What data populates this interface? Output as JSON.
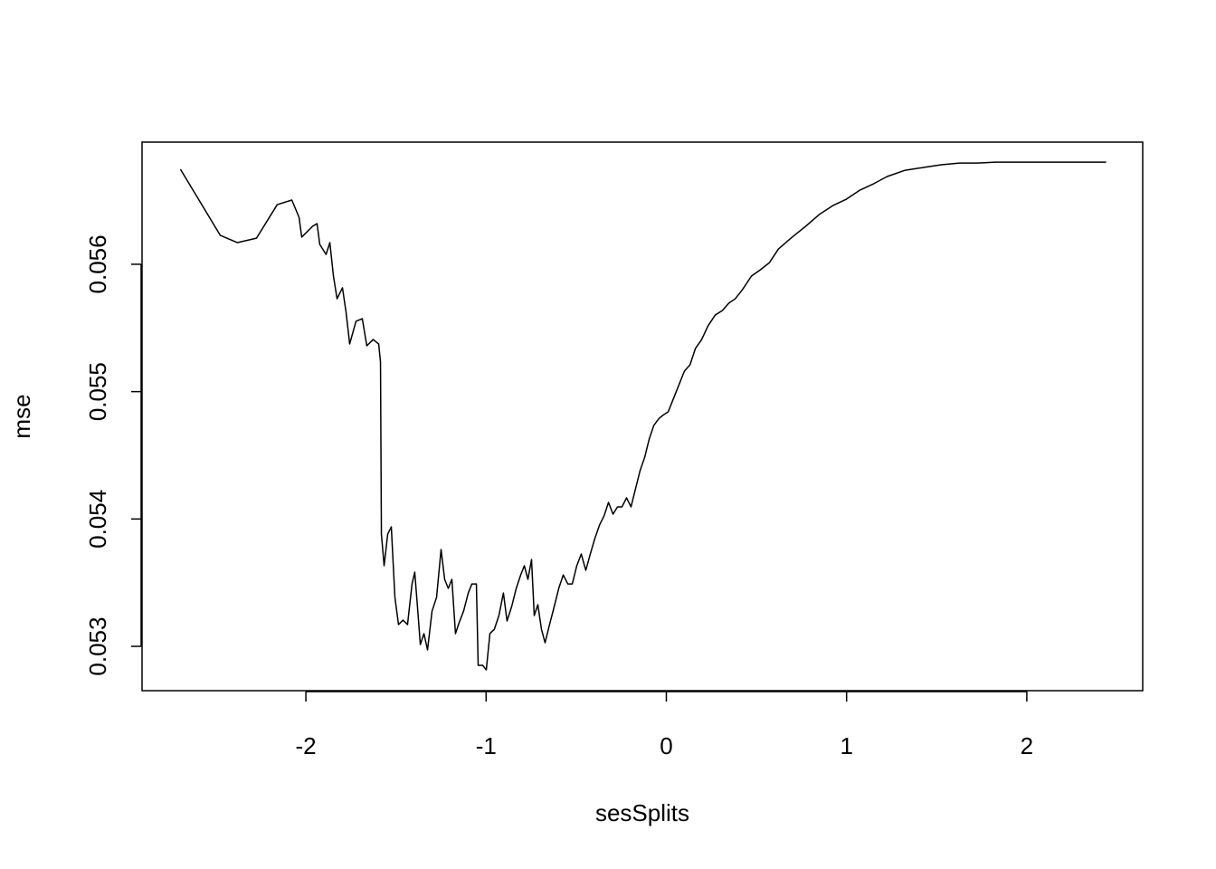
{
  "chart_data": {
    "type": "line",
    "xlabel": "sesSplits",
    "ylabel": "mse",
    "x": [
      -2.696,
      -2.475,
      -2.38,
      -2.274,
      -2.159,
      -2.078,
      -2.038,
      -2.023,
      -1.963,
      -1.938,
      -1.923,
      -1.888,
      -1.867,
      -1.847,
      -1.827,
      -1.797,
      -1.777,
      -1.757,
      -1.722,
      -1.687,
      -1.662,
      -1.627,
      -1.596,
      -1.586,
      -1.581,
      -1.566,
      -1.546,
      -1.526,
      -1.506,
      -1.486,
      -1.461,
      -1.436,
      -1.411,
      -1.396,
      -1.381,
      -1.365,
      -1.345,
      -1.325,
      -1.3,
      -1.275,
      -1.25,
      -1.23,
      -1.21,
      -1.19,
      -1.17,
      -1.15,
      -1.125,
      -1.099,
      -1.079,
      -1.054,
      -1.044,
      -1.019,
      -0.999,
      -0.979,
      -0.954,
      -0.929,
      -0.904,
      -0.884,
      -0.858,
      -0.833,
      -0.808,
      -0.788,
      -0.768,
      -0.748,
      -0.733,
      -0.713,
      -0.693,
      -0.673,
      -0.648,
      -0.622,
      -0.597,
      -0.572,
      -0.547,
      -0.522,
      -0.497,
      -0.472,
      -0.447,
      -0.422,
      -0.397,
      -0.371,
      -0.346,
      -0.321,
      -0.296,
      -0.271,
      -0.246,
      -0.221,
      -0.196,
      -0.171,
      -0.146,
      -0.12,
      -0.095,
      -0.07,
      -0.04,
      -0.015,
      0.01,
      0.04,
      0.07,
      0.1,
      0.131,
      0.161,
      0.196,
      0.231,
      0.271,
      0.311,
      0.346,
      0.382,
      0.422,
      0.472,
      0.522,
      0.572,
      0.622,
      0.698,
      0.773,
      0.848,
      0.924,
      0.999,
      1.074,
      1.15,
      1.225,
      1.325,
      1.426,
      1.526,
      1.627,
      1.727,
      1.827,
      2.078,
      2.44
    ],
    "series": [
      {
        "color": "#000000",
        "values": [
          0.056746,
          0.056227,
          0.05617,
          0.056205,
          0.056468,
          0.056504,
          0.056369,
          0.056213,
          0.056298,
          0.056319,
          0.056156,
          0.056077,
          0.05617,
          0.055907,
          0.055729,
          0.055815,
          0.055623,
          0.055374,
          0.055552,
          0.055573,
          0.05536,
          0.055409,
          0.055374,
          0.055232,
          0.053881,
          0.053633,
          0.053881,
          0.053938,
          0.053384,
          0.053171,
          0.053206,
          0.053171,
          0.05349,
          0.053583,
          0.053313,
          0.053014,
          0.0531,
          0.052972,
          0.053277,
          0.053384,
          0.05376,
          0.053526,
          0.053455,
          0.053526,
          0.0531,
          0.053185,
          0.053277,
          0.053419,
          0.05349,
          0.05349,
          0.052851,
          0.052851,
          0.052815,
          0.0531,
          0.053135,
          0.053242,
          0.053419,
          0.053199,
          0.053313,
          0.053455,
          0.053561,
          0.053633,
          0.053526,
          0.053682,
          0.053242,
          0.053327,
          0.053135,
          0.053028,
          0.053171,
          0.053313,
          0.053455,
          0.053561,
          0.05349,
          0.05349,
          0.053633,
          0.053725,
          0.053597,
          0.053725,
          0.053846,
          0.053952,
          0.054023,
          0.05413,
          0.054038,
          0.054095,
          0.054095,
          0.054166,
          0.054095,
          0.054237,
          0.054379,
          0.054485,
          0.054628,
          0.054734,
          0.054791,
          0.054819,
          0.054841,
          0.054947,
          0.055054,
          0.055161,
          0.05521,
          0.055338,
          0.055409,
          0.055516,
          0.055601,
          0.055637,
          0.055694,
          0.055729,
          0.0558,
          0.055907,
          0.055957,
          0.056013,
          0.05612,
          0.056213,
          0.056298,
          0.05639,
          0.056461,
          0.056511,
          0.056582,
          0.056632,
          0.056689,
          0.056738,
          0.05676,
          0.056781,
          0.056795,
          0.056795,
          0.056802,
          0.056802,
          0.056802
        ]
      }
    ],
    "xlim": [
      -2.909,
      2.643
    ],
    "xticks": [
      -2,
      -1,
      0,
      1,
      2
    ],
    "ylim": [
      0.052652,
      0.056959
    ],
    "yticks": [
      0.053,
      0.054,
      0.055,
      0.056
    ],
    "grid": false
  }
}
